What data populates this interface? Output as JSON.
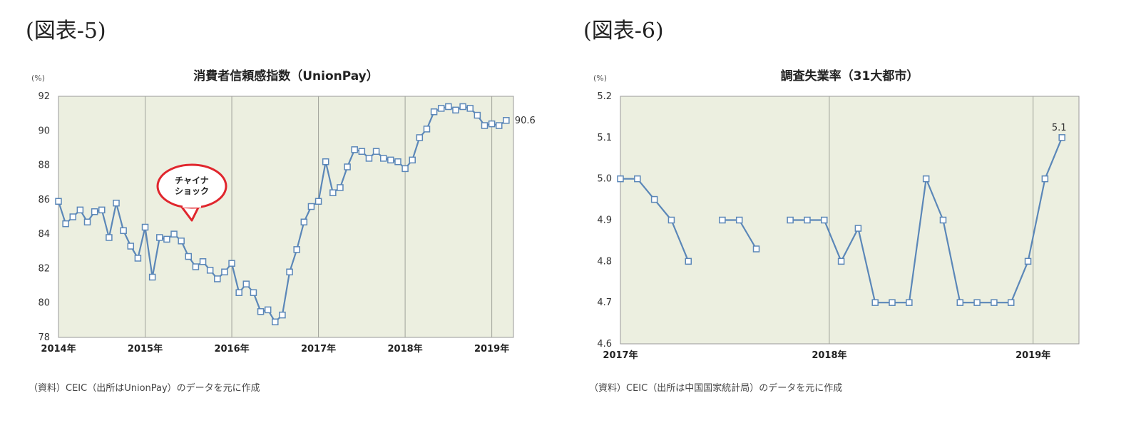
{
  "labels": {
    "left": "(図表-5)",
    "right": "(図表-6)"
  },
  "sources": {
    "left": "（資料）CEIC（出所はUnionPay）のデータを元に作成",
    "right": "（資料）CEIC（出所は中国国家統計局）のデータを元に作成"
  },
  "chart_data": [
    {
      "type": "line",
      "title": "消費者信頼感指数（UnionPay）",
      "ylabel": "(%)",
      "xlabel": "",
      "ylim": [
        78,
        92
      ],
      "yticks": [
        78,
        80,
        82,
        84,
        86,
        88,
        90,
        92
      ],
      "xtick_labels": [
        "2014年",
        "2015年",
        "2016年",
        "2017年",
        "2018年",
        "2019年"
      ],
      "start": "2014-01",
      "grid": "vertical at year boundaries",
      "plot_background": "#ecefe0",
      "line_color": "#5b87b8",
      "annotation_bubble": [
        "チャイナ",
        "ショック"
      ],
      "end_label": "90.6",
      "series": [
        {
          "values": [
            85.9,
            84.6,
            85.0,
            85.4,
            84.7,
            85.3,
            85.4,
            83.8,
            85.8,
            84.2,
            83.3,
            82.6,
            84.4,
            81.5,
            83.8,
            83.7,
            84.0,
            83.6,
            82.7,
            82.1,
            82.4,
            81.9,
            81.4,
            81.8,
            82.3,
            80.6,
            81.1,
            80.6,
            79.5,
            79.6,
            78.9,
            79.3,
            81.8,
            83.1,
            84.7,
            85.6,
            85.9,
            88.2,
            86.4,
            86.7,
            87.9,
            88.9,
            88.8,
            88.4,
            88.8,
            88.4,
            88.3,
            88.2,
            87.8,
            88.3,
            89.6,
            90.1,
            91.1,
            91.3,
            91.4,
            91.2,
            91.4,
            91.3,
            90.9,
            90.3,
            90.4,
            90.3,
            90.6
          ]
        }
      ]
    },
    {
      "type": "line",
      "title": "調査失業率（31大都市）",
      "ylabel": "(%)",
      "xlabel": "",
      "ylim": [
        4.6,
        5.2
      ],
      "yticks": [
        "4.6",
        "4.7",
        "4.8",
        "4.9",
        "5.0",
        "5.1",
        "5.2"
      ],
      "xtick_labels": [
        "2017年",
        "2018年",
        "2019年"
      ],
      "start": "2017-01",
      "grid": "vertical at year boundaries",
      "plot_background": "#ecefe0",
      "line_color": "#5b87b8",
      "end_label": "5.1",
      "series": [
        {
          "values": [
            5.0,
            5.0,
            4.95,
            4.9,
            4.8,
            null,
            4.9,
            4.9,
            4.83,
            null,
            4.9,
            4.9,
            4.9,
            4.8,
            4.88,
            4.7,
            4.7,
            4.7,
            5.0,
            4.9,
            4.7,
            4.7,
            4.7,
            4.7,
            4.8,
            5.0,
            5.1
          ]
        }
      ]
    }
  ]
}
